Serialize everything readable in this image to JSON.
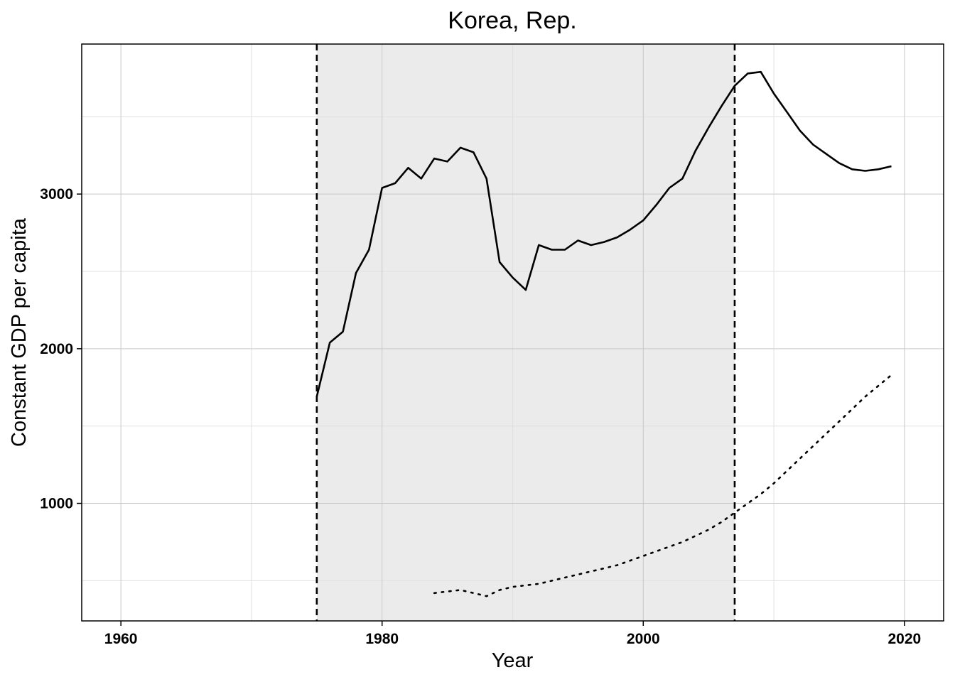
{
  "chart_data": {
    "type": "line",
    "title": "Korea, Rep.",
    "xlabel": "Year",
    "ylabel": "Constant GDP per capita",
    "xlim": [
      1957,
      2023
    ],
    "ylim": [
      240,
      3970
    ],
    "x_ticks": [
      1960,
      1980,
      2000,
      2020
    ],
    "y_ticks": [
      1000,
      2000,
      3000
    ],
    "grid": true,
    "legend": "none",
    "shaded_period": {
      "start": 1975,
      "end": 2007,
      "color": "#ebebeb"
    },
    "vertical_lines": [
      1975,
      2007
    ],
    "series": [
      {
        "style": "solid",
        "x": [
          1975,
          1976,
          1977,
          1978,
          1979,
          1980,
          1981,
          1982,
          1983,
          1984,
          1985,
          1986,
          1987,
          1988,
          1989,
          1990,
          1991,
          1992,
          1993,
          1994,
          1995,
          1996,
          1997,
          1998,
          1999,
          2000,
          2001,
          2002,
          2003,
          2004,
          2005,
          2006,
          2007,
          2008,
          2009,
          2010,
          2011,
          2012,
          2013,
          2014,
          2015,
          2016,
          2017,
          2018,
          2019
        ],
        "y": [
          1690,
          2040,
          2110,
          2490,
          2640,
          3040,
          3070,
          3170,
          3100,
          3230,
          3210,
          3300,
          3270,
          3100,
          2560,
          2460,
          2380,
          2670,
          2640,
          2640,
          2700,
          2670,
          2690,
          2720,
          2770,
          2830,
          2930,
          3040,
          3100,
          3280,
          3430,
          3570,
          3700,
          3780,
          3790,
          3650,
          3530,
          3410,
          3320,
          3260,
          3200,
          3160,
          3150,
          3160,
          3180
        ]
      },
      {
        "style": "dotted",
        "x": [
          1984,
          1985,
          1986,
          1987,
          1988,
          1989,
          1990,
          1991,
          1992,
          1993,
          1994,
          1995,
          1996,
          1997,
          1998,
          1999,
          2000,
          2001,
          2002,
          2003,
          2004,
          2005,
          2006,
          2007,
          2008,
          2009,
          2010,
          2011,
          2012,
          2013,
          2014,
          2015,
          2016,
          2017,
          2018,
          2019
        ],
        "y": [
          420,
          430,
          440,
          420,
          400,
          440,
          460,
          470,
          480,
          500,
          520,
          540,
          560,
          580,
          600,
          630,
          660,
          690,
          720,
          750,
          790,
          830,
          880,
          940,
          1000,
          1060,
          1130,
          1210,
          1290,
          1370,
          1450,
          1530,
          1610,
          1690,
          1760,
          1830
        ]
      }
    ]
  }
}
